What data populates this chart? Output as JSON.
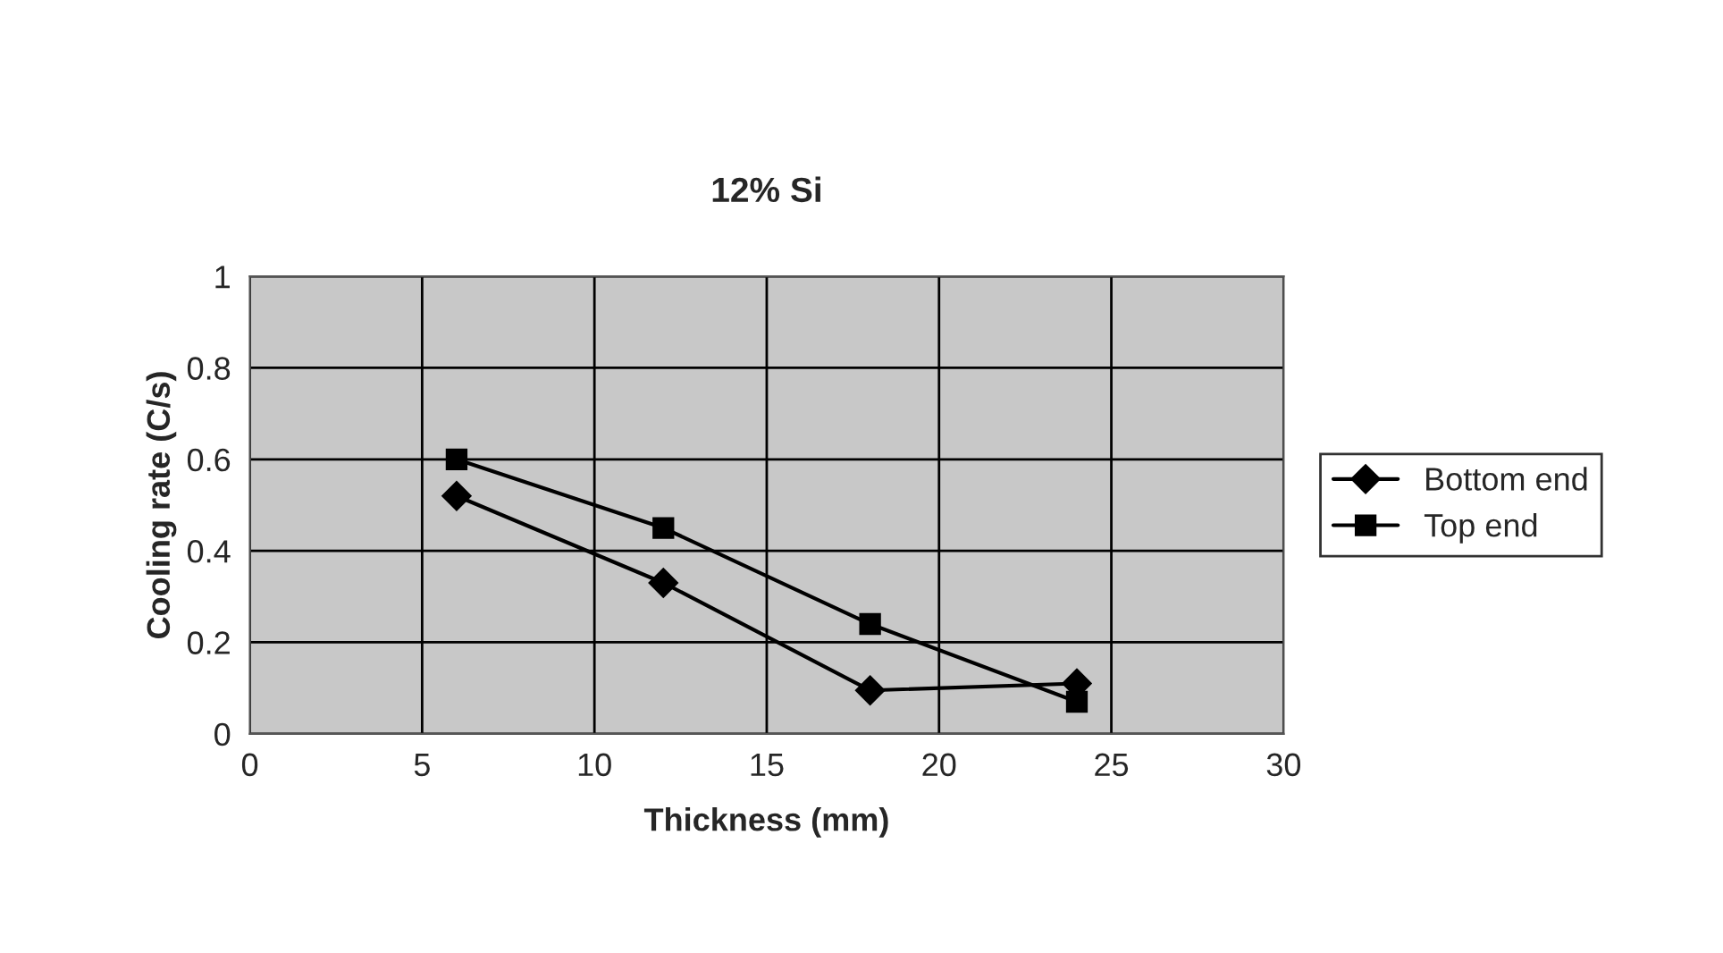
{
  "chart_data": {
    "type": "line",
    "title": "12% Si",
    "xlabel": "Thickness (mm)",
    "ylabel": "Cooling rate (C/s)",
    "x": [
      6,
      12,
      18,
      24
    ],
    "series": [
      {
        "name": "Bottom end",
        "color": "#000000",
        "marker": "diamond",
        "values": [
          0.52,
          0.33,
          0.095,
          0.11
        ]
      },
      {
        "name": "Top end",
        "color": "#000000",
        "marker": "square",
        "values": [
          0.6,
          0.45,
          0.24,
          0.07
        ]
      }
    ],
    "xlim": [
      0,
      30
    ],
    "xticks": [
      0,
      5,
      10,
      15,
      20,
      25,
      30
    ],
    "ylim": [
      0,
      1
    ],
    "yticks": [
      0,
      0.2,
      0.4,
      0.6,
      0.8,
      1
    ],
    "grid": true,
    "legend": "right",
    "line_style": "solid"
  }
}
